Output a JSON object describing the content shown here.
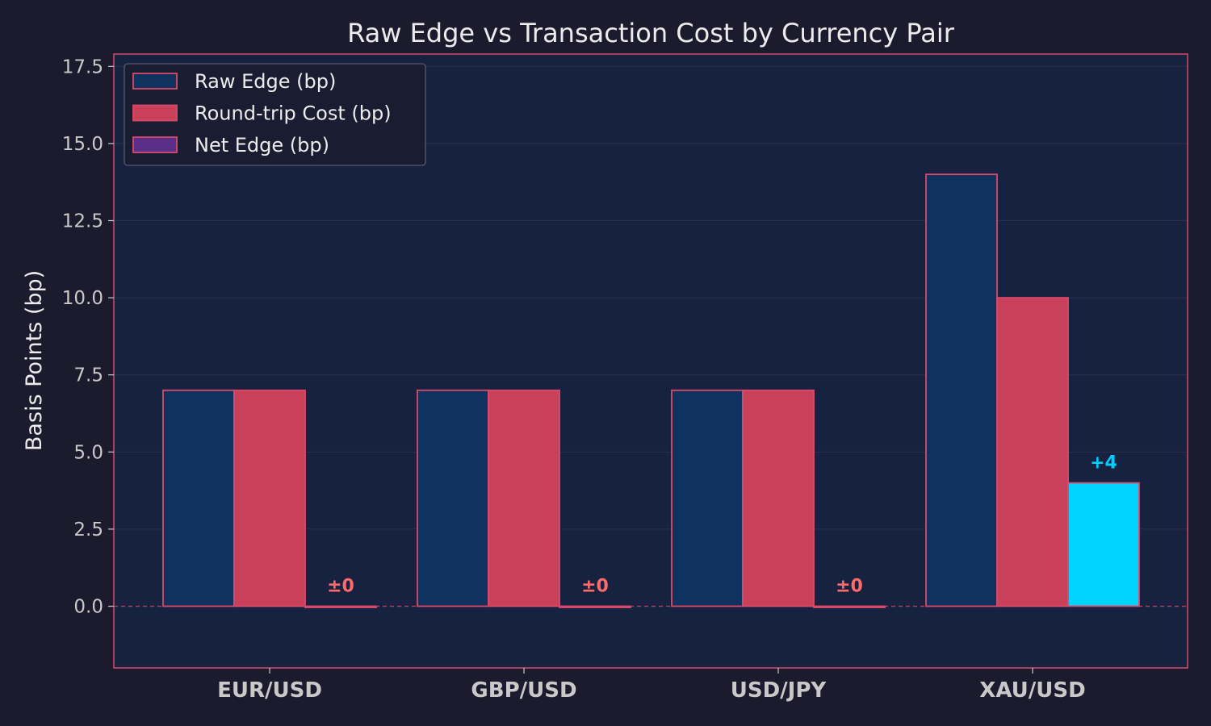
{
  "chart_data": {
    "type": "bar",
    "title": "Raw Edge vs Transaction Cost by Currency Pair",
    "xlabel": "",
    "ylabel": "Basis Points (bp)",
    "ylim": [
      -2.0,
      17.9
    ],
    "yticks": [
      0.0,
      2.5,
      5.0,
      7.5,
      10.0,
      12.5,
      15.0,
      17.5
    ],
    "ytick_labels": [
      "0.0",
      "2.5",
      "5.0",
      "7.5",
      "10.0",
      "12.5",
      "15.0",
      "17.5"
    ],
    "categories": [
      "EUR/USD",
      "GBP/USD",
      "USD/JPY",
      "XAU/USD"
    ],
    "series": [
      {
        "name": "Raw Edge (bp)",
        "values": [
          7,
          7,
          7,
          14
        ],
        "color": "#10325e"
      },
      {
        "name": "Round-trip Cost (bp)",
        "values": [
          7,
          7,
          7,
          10
        ],
        "color": "#c9405a"
      },
      {
        "name": "Net Edge (bp)",
        "values": [
          0,
          0,
          0,
          4
        ],
        "color": "#5a2f8a"
      }
    ],
    "net_labels": [
      "±0",
      "±0",
      "±0",
      "+4"
    ],
    "net_colors": [
      "#ff6b6b",
      "#ff6b6b",
      "#ff6b6b",
      "#00cfff"
    ],
    "net_bar_colors": [
      "#c9405a",
      "#c9405a",
      "#c9405a",
      "#00d4ff"
    ],
    "edge_color": "#d94a6a",
    "plot_bg": "#172140",
    "grid": true,
    "zero_line": "dashed",
    "legend_position": "top-left"
  }
}
